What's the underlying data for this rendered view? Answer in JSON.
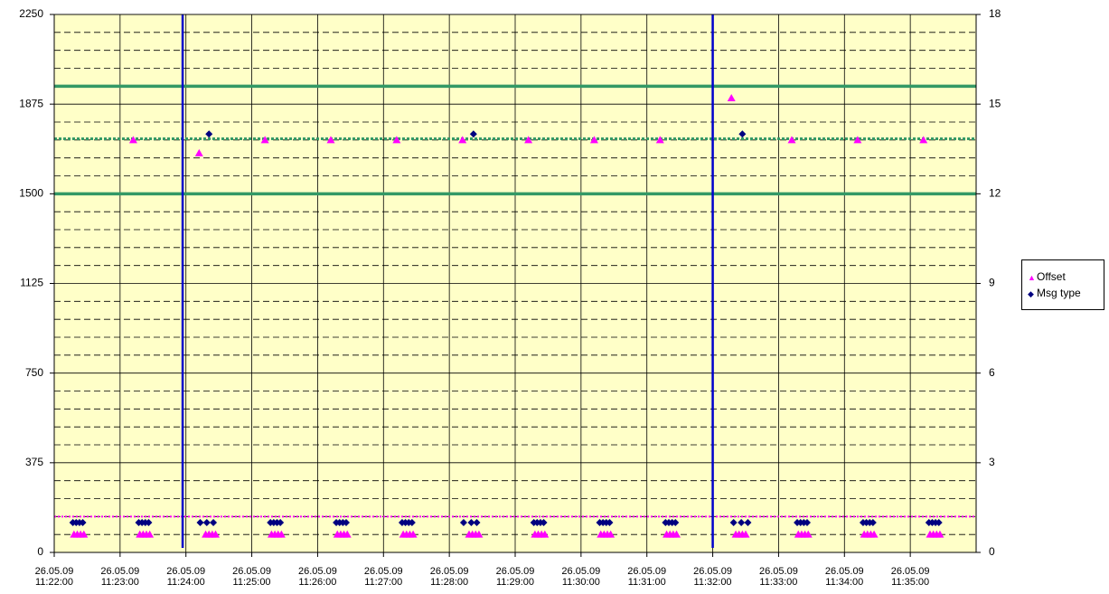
{
  "chart_data": {
    "type": "scatter",
    "xlim": [
      "26.05.09 11:22:00",
      "26.05.09 11:36:00"
    ],
    "xticks": [
      "26.05.09 11:22:00",
      "26.05.09 11:23:00",
      "26.05.09 11:24:00",
      "26.05.09 11:25:00",
      "26.05.09 11:26:00",
      "26.05.09 11:27:00",
      "26.05.09 11:28:00",
      "26.05.09 11:29:00",
      "26.05.09 11:30:00",
      "26.05.09 11:31:00",
      "26.05.09 11:32:00",
      "26.05.09 11:33:00",
      "26.05.09 11:34:00",
      "26.05.09 11:35:00"
    ],
    "ylim": [
      0,
      2250
    ],
    "yticks": [
      0,
      375,
      750,
      1125,
      1500,
      1875,
      2250
    ],
    "y2lim": [
      0,
      18
    ],
    "y2ticks": [
      0,
      3,
      6,
      9,
      12,
      15,
      18
    ],
    "grid": true,
    "minor_grid": true,
    "background": "#ffffc8",
    "legend": "right",
    "hlines": [
      {
        "value": 1950,
        "color": "#339966",
        "style": "solid"
      },
      {
        "value": 1500,
        "color": "#339966",
        "style": "solid"
      },
      {
        "value": 1730,
        "color": "#339966",
        "style": "dotted"
      },
      {
        "value": 150,
        "color": "#ff00ff",
        "style": "dotted"
      }
    ],
    "vlines": [
      {
        "x": "26.05.09 11:23:57",
        "color": "#0000cc"
      },
      {
        "x": "26.05.09 11:32:00",
        "color": "#0000cc"
      }
    ],
    "series": [
      {
        "name": "Offset",
        "color": "#ff00ff",
        "marker": "triangle",
        "x": [
          "26.05.09 11:22:18",
          "26.05.09 11:22:21",
          "26.05.09 11:22:24",
          "26.05.09 11:22:27",
          "26.05.09 11:23:12",
          "26.05.09 11:23:18",
          "26.05.09 11:23:21",
          "26.05.09 11:23:24",
          "26.05.09 11:23:27",
          "26.05.09 11:24:12",
          "26.05.09 11:24:18",
          "26.05.09 11:24:21",
          "26.05.09 11:24:24",
          "26.05.09 11:24:27",
          "26.05.09 11:25:12",
          "26.05.09 11:25:18",
          "26.05.09 11:25:21",
          "26.05.09 11:25:24",
          "26.05.09 11:25:27",
          "26.05.09 11:26:12",
          "26.05.09 11:26:18",
          "26.05.09 11:26:21",
          "26.05.09 11:26:24",
          "26.05.09 11:26:27",
          "26.05.09 11:27:12",
          "26.05.09 11:27:18",
          "26.05.09 11:27:21",
          "26.05.09 11:27:24",
          "26.05.09 11:27:27",
          "26.05.09 11:28:12",
          "26.05.09 11:28:18",
          "26.05.09 11:28:21",
          "26.05.09 11:28:24",
          "26.05.09 11:28:27",
          "26.05.09 11:29:12",
          "26.05.09 11:29:18",
          "26.05.09 11:29:21",
          "26.05.09 11:29:24",
          "26.05.09 11:29:27",
          "26.05.09 11:30:12",
          "26.05.09 11:30:18",
          "26.05.09 11:30:21",
          "26.05.09 11:30:24",
          "26.05.09 11:30:27",
          "26.05.09 11:31:12",
          "26.05.09 11:31:18",
          "26.05.09 11:31:21",
          "26.05.09 11:31:24",
          "26.05.09 11:31:27",
          "26.05.09 11:32:17",
          "26.05.09 11:32:21",
          "26.05.09 11:32:24",
          "26.05.09 11:32:27",
          "26.05.09 11:32:30",
          "26.05.09 11:33:12",
          "26.05.09 11:33:18",
          "26.05.09 11:33:21",
          "26.05.09 11:33:24",
          "26.05.09 11:33:27",
          "26.05.09 11:34:12",
          "26.05.09 11:34:18",
          "26.05.09 11:34:21",
          "26.05.09 11:34:24",
          "26.05.09 11:34:27",
          "26.05.09 11:35:12",
          "26.05.09 11:35:18",
          "26.05.09 11:35:21",
          "26.05.09 11:35:24",
          "26.05.09 11:35:27"
        ],
        "values": [
          75,
          75,
          75,
          75,
          1725,
          75,
          75,
          75,
          75,
          1670,
          75,
          75,
          75,
          75,
          1725,
          75,
          75,
          75,
          75,
          1725,
          75,
          75,
          75,
          75,
          1725,
          75,
          75,
          75,
          75,
          1725,
          75,
          75,
          75,
          75,
          1725,
          75,
          75,
          75,
          75,
          1725,
          75,
          75,
          75,
          75,
          1725,
          75,
          75,
          75,
          75,
          1900,
          75,
          75,
          75,
          75,
          1725,
          75,
          75,
          75,
          75,
          1725,
          75,
          75,
          75,
          75,
          1725,
          75,
          75,
          75,
          75
        ]
      },
      {
        "name": "Msg type",
        "color": "#000080",
        "marker": "diamond",
        "axis": "y2",
        "x": [
          "26.05.09 11:22:17",
          "26.05.09 11:22:20",
          "26.05.09 11:22:23",
          "26.05.09 11:22:26",
          "26.05.09 11:23:17",
          "26.05.09 11:23:20",
          "26.05.09 11:23:23",
          "26.05.09 11:23:26",
          "26.05.09 11:24:13",
          "26.05.09 11:24:19",
          "26.05.09 11:24:25",
          "26.05.09 11:24:21",
          "26.05.09 11:25:17",
          "26.05.09 11:25:20",
          "26.05.09 11:25:23",
          "26.05.09 11:25:26",
          "26.05.09 11:26:17",
          "26.05.09 11:26:20",
          "26.05.09 11:26:23",
          "26.05.09 11:26:26",
          "26.05.09 11:27:17",
          "26.05.09 11:27:20",
          "26.05.09 11:27:23",
          "26.05.09 11:27:26",
          "26.05.09 11:28:13",
          "26.05.09 11:28:20",
          "26.05.09 11:28:25",
          "26.05.09 11:28:22",
          "26.05.09 11:29:17",
          "26.05.09 11:29:20",
          "26.05.09 11:29:23",
          "26.05.09 11:29:26",
          "26.05.09 11:30:17",
          "26.05.09 11:30:20",
          "26.05.09 11:30:23",
          "26.05.09 11:30:26",
          "26.05.09 11:31:17",
          "26.05.09 11:31:20",
          "26.05.09 11:31:23",
          "26.05.09 11:31:26",
          "26.05.09 11:32:19",
          "26.05.09 11:32:26",
          "26.05.09 11:32:32",
          "26.05.09 11:32:27",
          "26.05.09 11:33:17",
          "26.05.09 11:33:20",
          "26.05.09 11:33:23",
          "26.05.09 11:33:26",
          "26.05.09 11:34:17",
          "26.05.09 11:34:20",
          "26.05.09 11:34:23",
          "26.05.09 11:34:26",
          "26.05.09 11:35:17",
          "26.05.09 11:35:20",
          "26.05.09 11:35:23",
          "26.05.09 11:35:26"
        ],
        "values": [
          1,
          1,
          1,
          1,
          1,
          1,
          1,
          1,
          1,
          1,
          1,
          14,
          1,
          1,
          1,
          1,
          1,
          1,
          1,
          1,
          1,
          1,
          1,
          1,
          1,
          1,
          1,
          14,
          1,
          1,
          1,
          1,
          1,
          1,
          1,
          1,
          1,
          1,
          1,
          1,
          1,
          1,
          1,
          14,
          1,
          1,
          1,
          1,
          1,
          1,
          1,
          1,
          1,
          1,
          1,
          1
        ]
      }
    ]
  }
}
